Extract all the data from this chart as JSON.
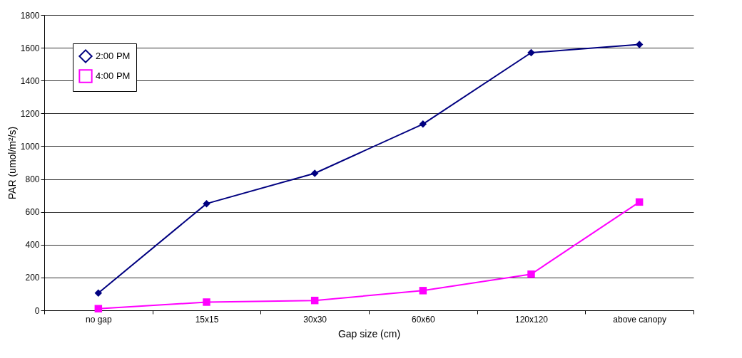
{
  "chart_data": {
    "type": "line",
    "xlabel": "Gap size (cm)",
    "ylabel": "PAR (umol/m²/s)",
    "categories": [
      "no gap",
      "15x15",
      "30x30",
      "60x60",
      "120x120",
      "above canopy"
    ],
    "series": [
      {
        "name": "2:00 PM",
        "color": "#000080",
        "marker": "diamond",
        "values": [
          105,
          650,
          835,
          1135,
          1570,
          1620
        ]
      },
      {
        "name": "4:00 PM",
        "color": "#ff00ff",
        "marker": "square",
        "values": [
          10,
          50,
          60,
          120,
          220,
          660
        ]
      }
    ],
    "ylim": [
      0,
      1800
    ],
    "yticks": [
      0,
      200,
      400,
      600,
      800,
      1000,
      1200,
      1400,
      1600,
      1800
    ],
    "grid": "y",
    "legend": "top left",
    "line_style": "solid"
  }
}
